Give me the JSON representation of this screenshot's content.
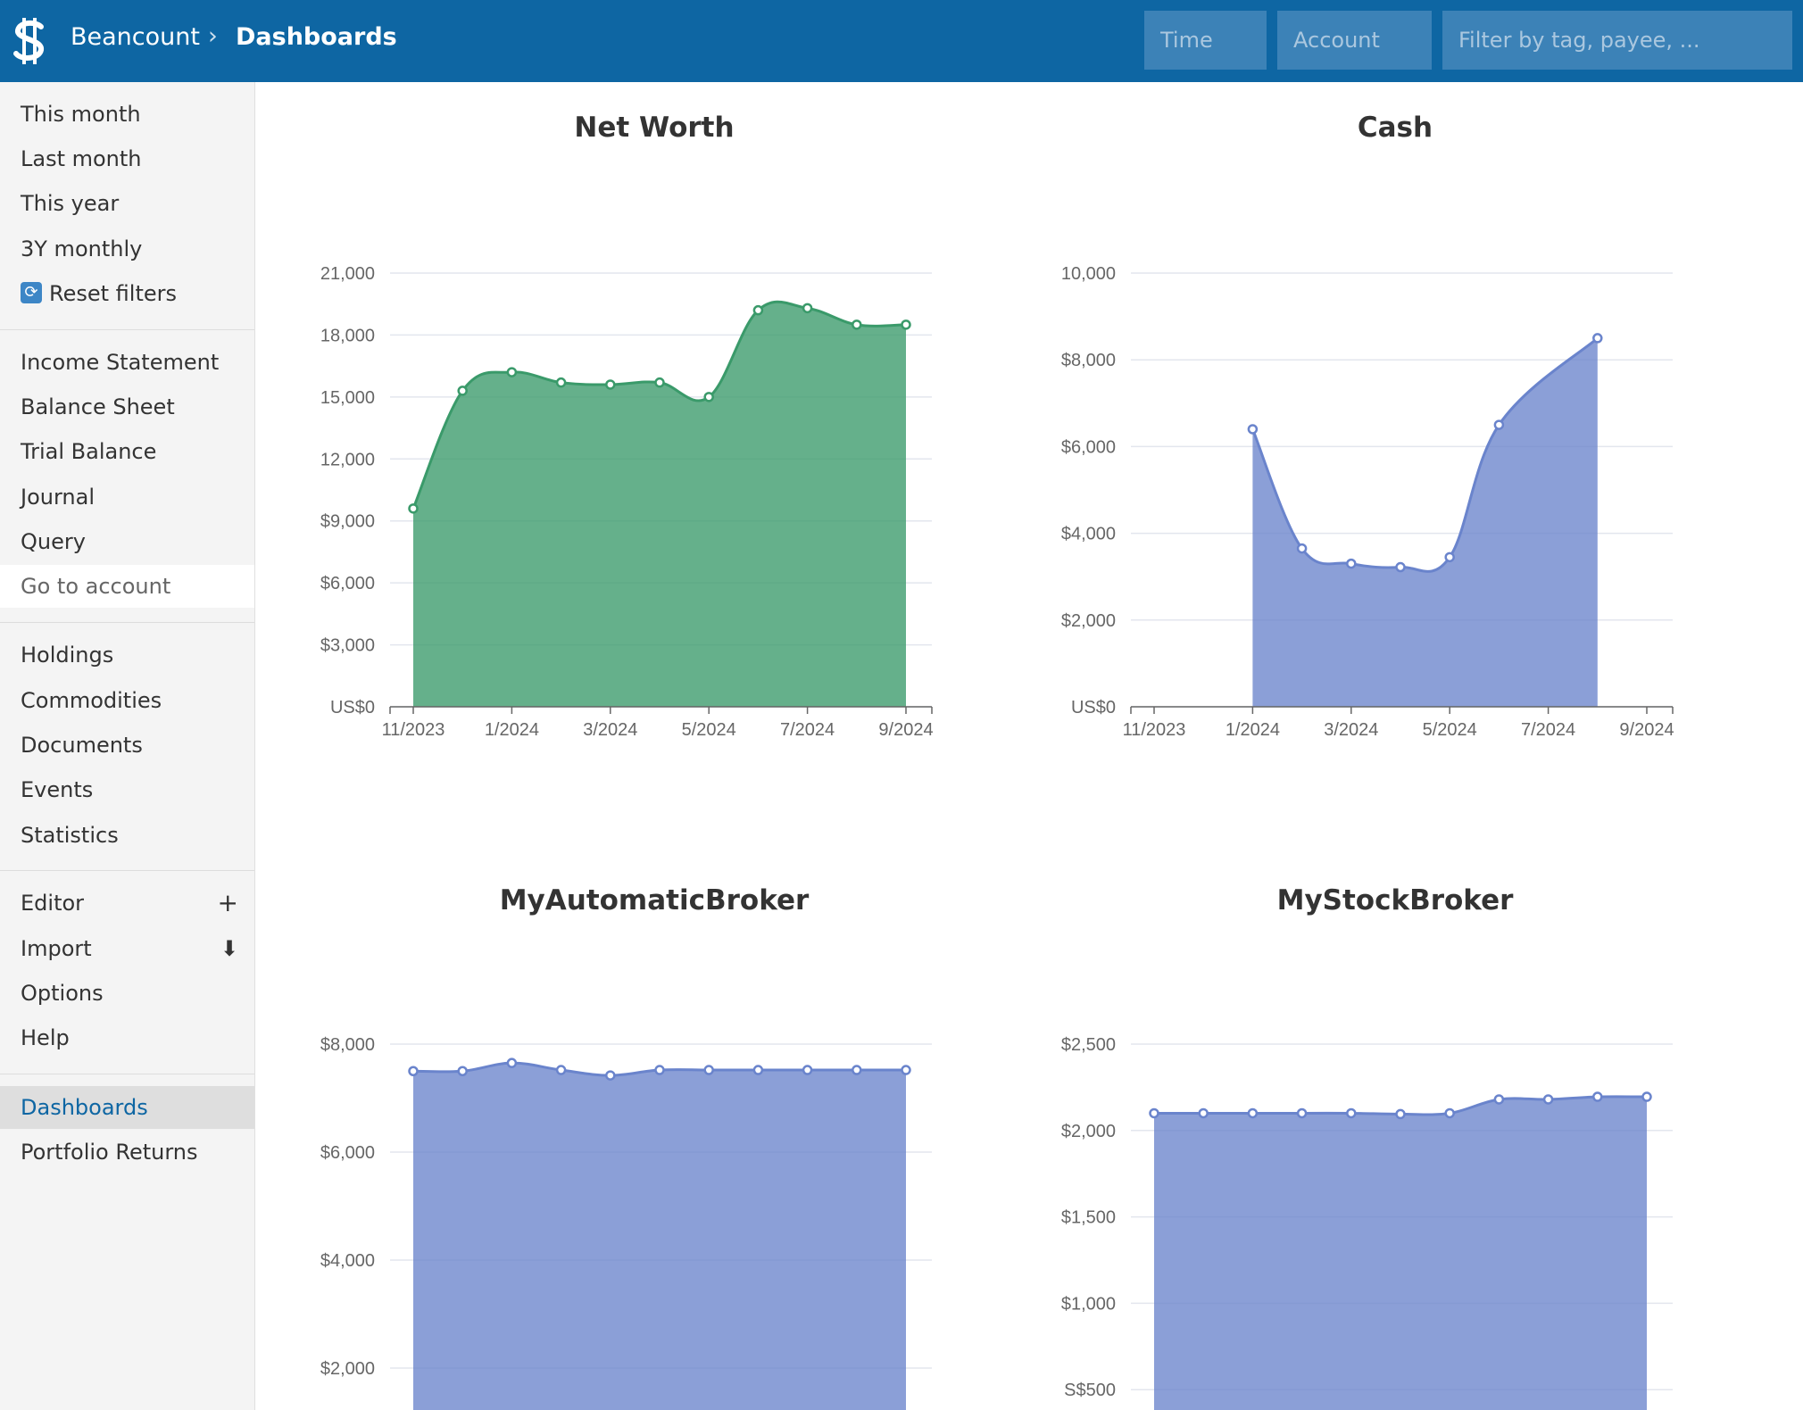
{
  "header": {
    "brand": "Beancount",
    "separator": "›",
    "current": "Dashboards",
    "time_placeholder": "Time",
    "account_placeholder": "Account",
    "filter_placeholder": "Filter by tag, payee, ...",
    "background_color": "#0e66a3"
  },
  "sidebar": {
    "time_filters": [
      "This month",
      "Last month",
      "This year",
      "3Y monthly"
    ],
    "reset": "Reset filters",
    "reports": [
      "Income Statement",
      "Balance Sheet",
      "Trial Balance",
      "Journal",
      "Query"
    ],
    "goto": "Go to account",
    "pages": [
      "Holdings",
      "Commodities",
      "Documents",
      "Events",
      "Statistics"
    ],
    "editor": "Editor",
    "import": "Import",
    "options": "Options",
    "help": "Help",
    "extensions": [
      "Dashboards",
      "Portfolio Returns"
    ],
    "active_color": "#0e66a3"
  },
  "chart_data": [
    {
      "type": "area",
      "title": "Net Worth",
      "color": "#3a9a6a",
      "x": [
        "11/2023",
        "12/2023",
        "1/2024",
        "2/2024",
        "3/2024",
        "4/2024",
        "5/2024",
        "6/2024",
        "7/2024",
        "8/2024",
        "9/2024"
      ],
      "values": [
        9600,
        15300,
        16200,
        15700,
        15600,
        15700,
        15000,
        19200,
        19300,
        18500,
        18500
      ],
      "xticks": [
        "11/2023",
        "1/2024",
        "3/2024",
        "5/2024",
        "7/2024",
        "9/2024"
      ],
      "yticks": [
        "US$0",
        "$3,000",
        "$6,000",
        "$9,000",
        "12,000",
        "15,000",
        "18,000",
        "21,000"
      ],
      "ylim": [
        0,
        21000
      ]
    },
    {
      "type": "area",
      "title": "Cash",
      "color": "#6a84cc",
      "x": [
        "1/2024",
        "2/2024",
        "3/2024",
        "4/2024",
        "5/2024",
        "6/2024",
        "8/2024"
      ],
      "values": [
        6400,
        3650,
        3300,
        3220,
        3450,
        6500,
        8500
      ],
      "xticks": [
        "11/2023",
        "1/2024",
        "3/2024",
        "5/2024",
        "7/2024",
        "9/2024"
      ],
      "yticks": [
        "US$0",
        "$2,000",
        "$4,000",
        "$6,000",
        "$8,000",
        "10,000"
      ],
      "ylim": [
        0,
        10000
      ]
    },
    {
      "type": "area",
      "title": "MyAutomaticBroker",
      "color": "#6a84cc",
      "x": [
        "11/2023",
        "12/2023",
        "1/2024",
        "2/2024",
        "3/2024",
        "4/2024",
        "5/2024",
        "6/2024",
        "7/2024",
        "8/2024",
        "9/2024"
      ],
      "values": [
        7500,
        7500,
        7650,
        7520,
        7420,
        7520,
        7520,
        7520,
        7520,
        7520,
        7520
      ],
      "yticks": [
        "$2,000",
        "$4,000",
        "$6,000",
        "$8,000"
      ],
      "ylim": [
        0,
        8000
      ]
    },
    {
      "type": "area",
      "title": "MyStockBroker",
      "color": "#6a84cc",
      "x": [
        "11/2023",
        "12/2023",
        "1/2024",
        "2/2024",
        "3/2024",
        "4/2024",
        "5/2024",
        "6/2024",
        "7/2024",
        "8/2024",
        "9/2024"
      ],
      "values": [
        2100,
        2100,
        2100,
        2100,
        2100,
        2095,
        2100,
        2180,
        2180,
        2195,
        2195
      ],
      "yticks": [
        "S$500",
        "$1,000",
        "$1,500",
        "$2,000",
        "$2,500"
      ],
      "ylim": [
        0,
        2500
      ]
    }
  ]
}
